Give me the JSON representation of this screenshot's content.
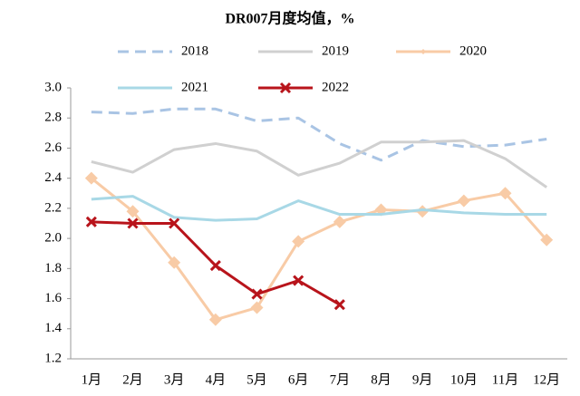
{
  "chart_data": {
    "type": "line",
    "title": "DR007月度均值，%",
    "categories": [
      "1月",
      "2月",
      "3月",
      "4月",
      "5月",
      "6月",
      "7月",
      "8月",
      "9月",
      "10月",
      "11月",
      "12月"
    ],
    "series": [
      {
        "name": "2018",
        "color": "#a9c4e4",
        "dashed": true,
        "marker": "none",
        "values": [
          2.84,
          2.83,
          2.86,
          2.86,
          2.78,
          2.8,
          2.63,
          2.52,
          2.65,
          2.61,
          2.62,
          2.66
        ]
      },
      {
        "name": "2019",
        "color": "#d0d0d0",
        "dashed": false,
        "marker": "none",
        "values": [
          2.51,
          2.44,
          2.59,
          2.63,
          2.58,
          2.42,
          2.5,
          2.64,
          2.64,
          2.65,
          2.53,
          2.34
        ]
      },
      {
        "name": "2020",
        "color": "#f8cba6",
        "dashed": false,
        "marker": "diamond",
        "values": [
          2.4,
          2.18,
          1.84,
          1.46,
          1.54,
          1.98,
          2.11,
          2.19,
          2.18,
          2.25,
          2.3,
          1.99
        ]
      },
      {
        "name": "2021",
        "color": "#a8d8e6",
        "dashed": false,
        "marker": "none",
        "values": [
          2.26,
          2.28,
          2.14,
          2.12,
          2.13,
          2.25,
          2.16,
          2.16,
          2.19,
          2.17,
          2.16,
          2.16
        ]
      },
      {
        "name": "2022",
        "color": "#b8141b",
        "dashed": false,
        "marker": "x",
        "values": [
          2.11,
          2.1,
          2.1,
          1.82,
          1.63,
          1.72,
          1.56,
          null,
          null,
          null,
          null,
          null
        ]
      }
    ],
    "ylim": [
      1.2,
      3.0
    ],
    "yticks": [
      {
        "value": 3,
        "label": "3.0"
      },
      2.8,
      2.6,
      2.4,
      2.2,
      {
        "value": 2,
        "label": "2.0"
      },
      1.8,
      1.6,
      1.4,
      1.2
    ],
    "grid": false
  }
}
